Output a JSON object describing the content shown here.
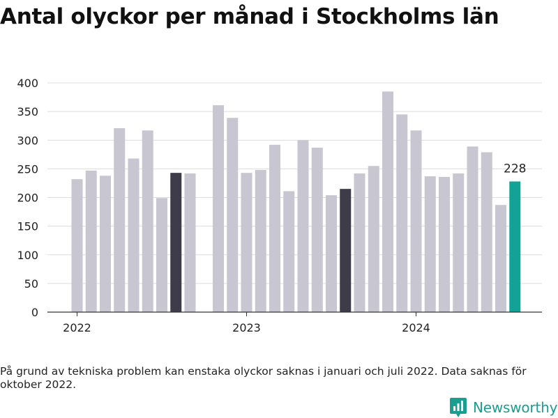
{
  "title": "Antal olyckor per månad i Stockholms län",
  "footnote": "På grund av tekniska problem kan enstaka olyckor saknas i januari och juli 2022. Data saknas för oktober 2022.",
  "brand": {
    "name": "Newsworthy",
    "logo_icon": "bar-chart-pin-icon"
  },
  "colors": {
    "normal": "#c8c6d0",
    "dark": "#3d3c48",
    "highlight": "#13a396",
    "brand": "#1a9e8f"
  },
  "chart_data": {
    "type": "bar",
    "title": "Antal olyckor per månad i Stockholms län",
    "ylim": [
      0,
      400
    ],
    "yticks": [
      0,
      50,
      100,
      150,
      200,
      250,
      300,
      350,
      400
    ],
    "xticks": [
      "2022",
      "2023",
      "2024"
    ],
    "grid": true,
    "series": [
      {
        "values": [
          {
            "month": "2022-01",
            "value": 232,
            "style": "normal"
          },
          {
            "month": "2022-02",
            "value": 247,
            "style": "normal"
          },
          {
            "month": "2022-03",
            "value": 238,
            "style": "normal"
          },
          {
            "month": "2022-04",
            "value": 321,
            "style": "normal"
          },
          {
            "month": "2022-05",
            "value": 268,
            "style": "normal"
          },
          {
            "month": "2022-06",
            "value": 317,
            "style": "normal"
          },
          {
            "month": "2022-07",
            "value": 199,
            "style": "normal"
          },
          {
            "month": "2022-08",
            "value": 243,
            "style": "dark"
          },
          {
            "month": "2022-09",
            "value": 242,
            "style": "normal"
          },
          {
            "month": "2022-10",
            "value": null,
            "style": "normal"
          },
          {
            "month": "2022-11",
            "value": 361,
            "style": "normal"
          },
          {
            "month": "2022-12",
            "value": 339,
            "style": "normal"
          },
          {
            "month": "2023-01",
            "value": 243,
            "style": "normal"
          },
          {
            "month": "2023-02",
            "value": 248,
            "style": "normal"
          },
          {
            "month": "2023-03",
            "value": 292,
            "style": "normal"
          },
          {
            "month": "2023-04",
            "value": 211,
            "style": "normal"
          },
          {
            "month": "2023-05",
            "value": 300,
            "style": "normal"
          },
          {
            "month": "2023-06",
            "value": 287,
            "style": "normal"
          },
          {
            "month": "2023-07",
            "value": 204,
            "style": "normal"
          },
          {
            "month": "2023-08",
            "value": 215,
            "style": "dark"
          },
          {
            "month": "2023-09",
            "value": 242,
            "style": "normal"
          },
          {
            "month": "2023-10",
            "value": 255,
            "style": "normal"
          },
          {
            "month": "2023-11",
            "value": 385,
            "style": "normal"
          },
          {
            "month": "2023-12",
            "value": 345,
            "style": "normal"
          },
          {
            "month": "2024-01",
            "value": 317,
            "style": "normal"
          },
          {
            "month": "2024-02",
            "value": 237,
            "style": "normal"
          },
          {
            "month": "2024-03",
            "value": 236,
            "style": "normal"
          },
          {
            "month": "2024-04",
            "value": 242,
            "style": "normal"
          },
          {
            "month": "2024-05",
            "value": 289,
            "style": "normal"
          },
          {
            "month": "2024-06",
            "value": 279,
            "style": "normal"
          },
          {
            "month": "2024-07",
            "value": 187,
            "style": "normal"
          },
          {
            "month": "2024-08",
            "value": 228,
            "style": "highlight",
            "label": "228"
          }
        ]
      }
    ]
  }
}
